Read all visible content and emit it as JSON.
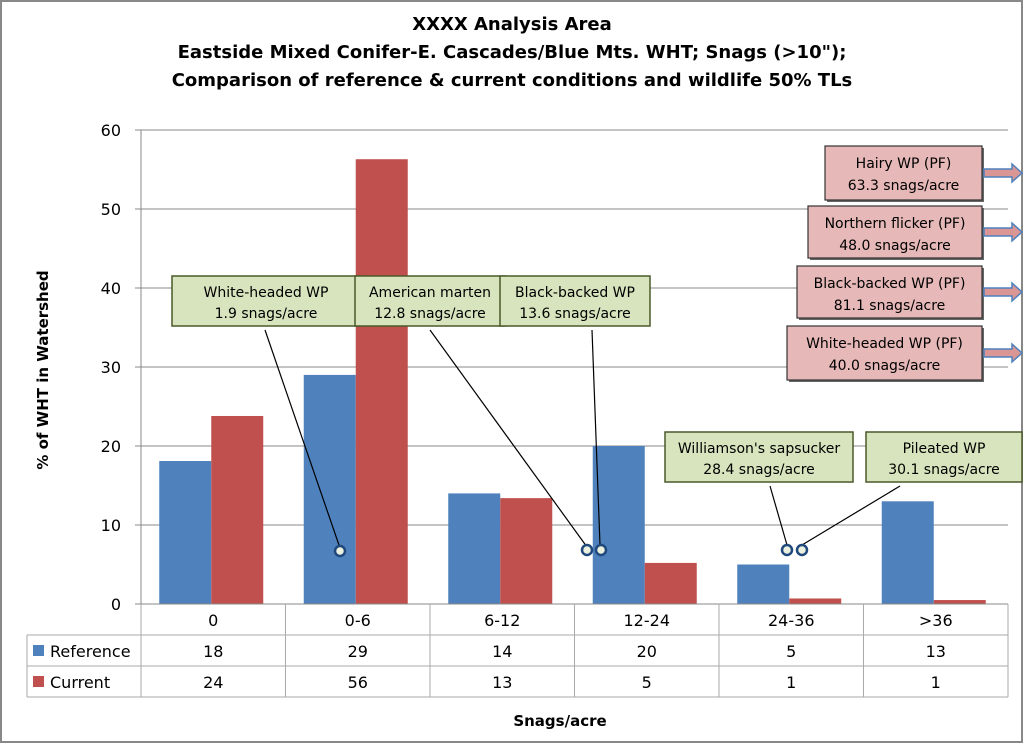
{
  "chart_data": {
    "type": "bar",
    "title_lines": [
      "XXXX Analysis Area",
      "Eastside Mixed Conifer-E. Cascades/Blue Mts. WHT; Snags (>10\");",
      "Comparison of reference & current conditions and wildlife 50% TLs"
    ],
    "xlabel": "Snags/acre",
    "ylabel": "% of WHT in Watershed",
    "ylim": [
      0,
      60
    ],
    "yticks": [
      "0",
      "10",
      "20",
      "30",
      "40",
      "50",
      "60"
    ],
    "grid": true,
    "categories": [
      "0",
      "0-6",
      "6-12",
      "12-24",
      "24-36",
      ">36"
    ],
    "series": [
      {
        "name": "Reference",
        "color": "#4f81bd",
        "values": [
          18,
          29,
          14,
          20,
          5,
          13
        ],
        "bar_values": [
          18.1,
          29,
          14,
          20,
          5,
          13
        ]
      },
      {
        "name": "Current",
        "color": "#c0504d",
        "values": [
          24,
          56,
          13,
          5,
          1,
          1
        ],
        "bar_values": [
          23.8,
          56.3,
          13.4,
          5.2,
          0.7,
          0.5
        ]
      }
    ],
    "legend": "data-table",
    "callouts_in_range": [
      {
        "species": "White-headed WP",
        "value": "1.9 snags/acre"
      },
      {
        "species": "American marten",
        "value": "12.8 snags/acre"
      },
      {
        "species": "Black-backed WP",
        "value": "13.6 snags/acre"
      },
      {
        "species": "Williamson's sapsucker",
        "value": "28.4 snags/acre"
      },
      {
        "species": "Pileated WP",
        "value": "30.1 snags/acre"
      }
    ],
    "callouts_off_scale": [
      {
        "species": "Hairy WP (PF)",
        "value": "63.3 snags/acre"
      },
      {
        "species": "Northern flicker (PF)",
        "value": "48.0 snags/acre"
      },
      {
        "species": "Black-backed WP (PF)",
        "value": "81.1 snags/acre"
      },
      {
        "species": "White-headed WP (PF)",
        "value": "40.0 snags/acre"
      }
    ]
  }
}
